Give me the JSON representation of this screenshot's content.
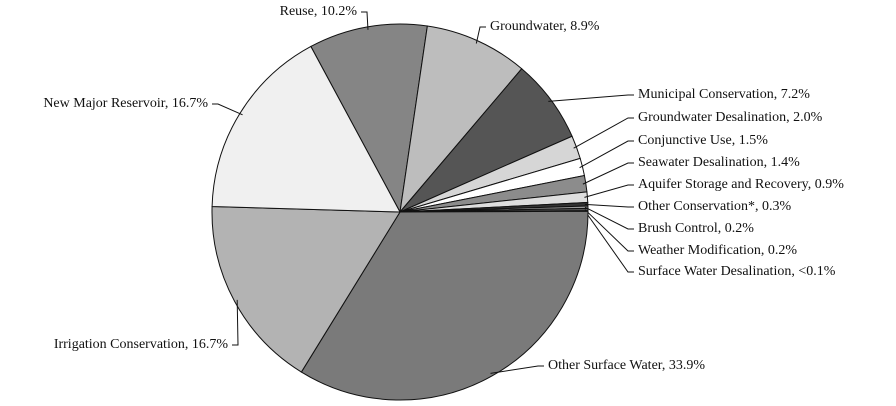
{
  "chart_data": {
    "type": "pie",
    "categories": [
      "Reuse, 10.2%",
      "Groundwater, 8.9%",
      "Municipal Conservation, 7.2%",
      "Groundwater Desalination, 2.0%",
      "Conjunctive Use, 1.5%",
      "Seawater Desalination, 1.4%",
      "Aquifer Storage and Recovery, 0.9%",
      "Other Conservation*, 0.3%",
      "Brush Control, 0.2%",
      "Weather Modification, 0.2%",
      "Surface Water Desalination, <0.1%",
      "Other Surface Water, 33.9%",
      "Irrigation Conservation, 16.7%",
      "New Major Reservoir, 16.7%"
    ],
    "values": [
      10.2,
      8.9,
      7.2,
      2.0,
      1.5,
      1.4,
      0.9,
      0.3,
      0.2,
      0.2,
      0.05,
      33.9,
      16.7,
      16.7
    ],
    "colors": [
      "#858585",
      "#bdbdbd",
      "#555555",
      "#d6d6d6",
      "#ffffff",
      "#8c8c8c",
      "#dedede",
      "#333333",
      "#9a9a9a",
      "#555555",
      "#222222",
      "#7a7a7a",
      "#b3b3b3",
      "#f0f0f0"
    ]
  }
}
